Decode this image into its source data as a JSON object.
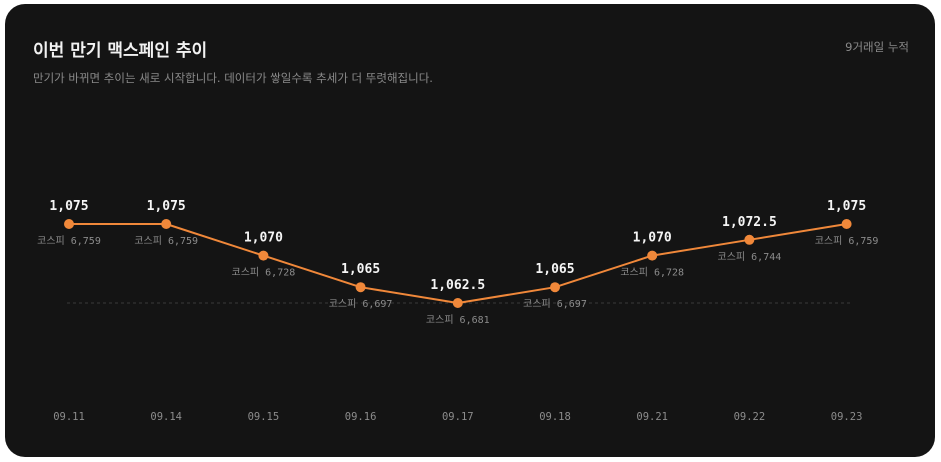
{
  "header": {
    "title": "이번 만기 맥스페인 추이",
    "badge": "9거래일 누적",
    "subtitle": "만기가 바뀌면 추이는 새로 시작합니다. 데이터가 쌓일수록 추세가 더 뚜렷해집니다."
  },
  "chart_data": {
    "type": "line",
    "x": [
      "09.11",
      "09.14",
      "09.15",
      "09.16",
      "09.17",
      "09.18",
      "09.21",
      "09.22",
      "09.23"
    ],
    "series": [
      {
        "values": [
          1075,
          1075,
          1070,
          1065,
          1062.5,
          1065,
          1070,
          1072.5,
          1075
        ],
        "value_labels": [
          "1,075",
          "1,075",
          "1,070",
          "1,065",
          "1,062.5",
          "1,065",
          "1,070",
          "1,072.5",
          "1,075"
        ],
        "color": "#f0883a"
      }
    ],
    "annotations": [
      "코스피 6,759",
      "코스피 6,759",
      "코스피 6,728",
      "코스피 6,697",
      "코스피 6,681",
      "코스피 6,697",
      "코스피 6,728",
      "코스피 6,744",
      "코스피 6,759"
    ],
    "reference_line": {
      "style": "dashed",
      "color": "#3a3a3a"
    },
    "ylim": [
      1060,
      1080
    ],
    "grid": false,
    "legend": "none",
    "colors": {
      "background": "#141414",
      "line": "#f0883a",
      "text": "#f5f5f5",
      "muted": "#8c8c8c"
    }
  }
}
